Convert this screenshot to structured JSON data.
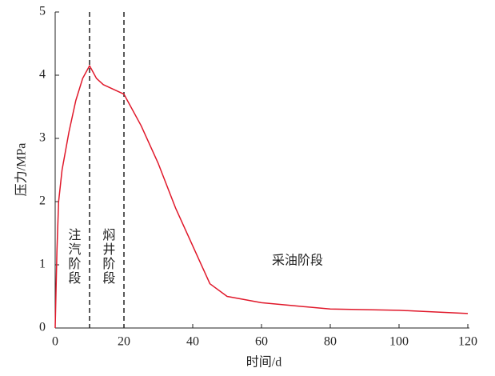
{
  "chart_data": {
    "type": "line",
    "x_label": "时间/d",
    "y_label": "压力/MPa",
    "x": [
      0,
      0.5,
      1,
      2,
      4,
      6,
      8,
      10,
      12,
      14,
      20,
      25,
      30,
      35,
      40,
      45,
      50,
      60,
      80,
      100,
      120
    ],
    "series": [
      {
        "name": "压力",
        "color": "#e0182a",
        "values": [
          0,
          1.2,
          2.0,
          2.5,
          3.1,
          3.6,
          3.95,
          4.15,
          3.95,
          3.85,
          3.7,
          3.2,
          2.6,
          1.9,
          1.3,
          0.7,
          0.5,
          0.4,
          0.3,
          0.28,
          0.23
        ]
      }
    ],
    "xlim": [
      0,
      120
    ],
    "xticks": [
      0,
      20,
      40,
      60,
      80,
      100,
      120
    ],
    "ylim": [
      0,
      5
    ],
    "yticks": [
      0,
      1,
      2,
      3,
      4,
      5
    ],
    "vlines": [
      10,
      20
    ],
    "annotations": [
      "注汽阶段",
      "焖井阶段",
      "采油阶段"
    ]
  }
}
